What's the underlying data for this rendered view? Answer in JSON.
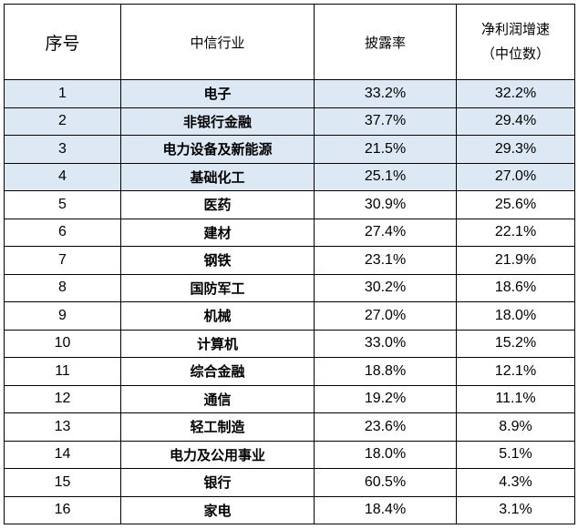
{
  "table": {
    "headers": {
      "seq": "序号",
      "industry": "中信行业",
      "disclosure_rate": "披露率",
      "growth_line1": "净利润增速",
      "growth_line2": "（中位数）"
    },
    "highlight_color": "#dce9f5",
    "rows": [
      {
        "seq": "1",
        "industry": "电子",
        "rate": "33.2%",
        "growth": "32.2%",
        "highlight": true
      },
      {
        "seq": "2",
        "industry": "非银行金融",
        "rate": "37.7%",
        "growth": "29.4%",
        "highlight": true
      },
      {
        "seq": "3",
        "industry": "电力设备及新能源",
        "rate": "21.5%",
        "growth": "29.3%",
        "highlight": true
      },
      {
        "seq": "4",
        "industry": "基础化工",
        "rate": "25.1%",
        "growth": "27.0%",
        "highlight": true
      },
      {
        "seq": "5",
        "industry": "医药",
        "rate": "30.9%",
        "growth": "25.6%",
        "highlight": false
      },
      {
        "seq": "6",
        "industry": "建材",
        "rate": "27.4%",
        "growth": "22.1%",
        "highlight": false
      },
      {
        "seq": "7",
        "industry": "钢铁",
        "rate": "23.1%",
        "growth": "21.9%",
        "highlight": false
      },
      {
        "seq": "8",
        "industry": "国防军工",
        "rate": "30.2%",
        "growth": "18.6%",
        "highlight": false
      },
      {
        "seq": "9",
        "industry": "机械",
        "rate": "27.0%",
        "growth": "18.0%",
        "highlight": false
      },
      {
        "seq": "10",
        "industry": "计算机",
        "rate": "33.0%",
        "growth": "15.2%",
        "highlight": false
      },
      {
        "seq": "11",
        "industry": "综合金融",
        "rate": "18.8%",
        "growth": "12.1%",
        "highlight": false
      },
      {
        "seq": "12",
        "industry": "通信",
        "rate": "19.2%",
        "growth": "11.1%",
        "highlight": false
      },
      {
        "seq": "13",
        "industry": "轻工制造",
        "rate": "23.6%",
        "growth": "8.9%",
        "highlight": false
      },
      {
        "seq": "14",
        "industry": "电力及公用事业",
        "rate": "18.0%",
        "growth": "5.1%",
        "highlight": false
      },
      {
        "seq": "15",
        "industry": "银行",
        "rate": "60.5%",
        "growth": "4.3%",
        "highlight": false
      },
      {
        "seq": "16",
        "industry": "家电",
        "rate": "18.4%",
        "growth": "3.1%",
        "highlight": false
      }
    ]
  }
}
